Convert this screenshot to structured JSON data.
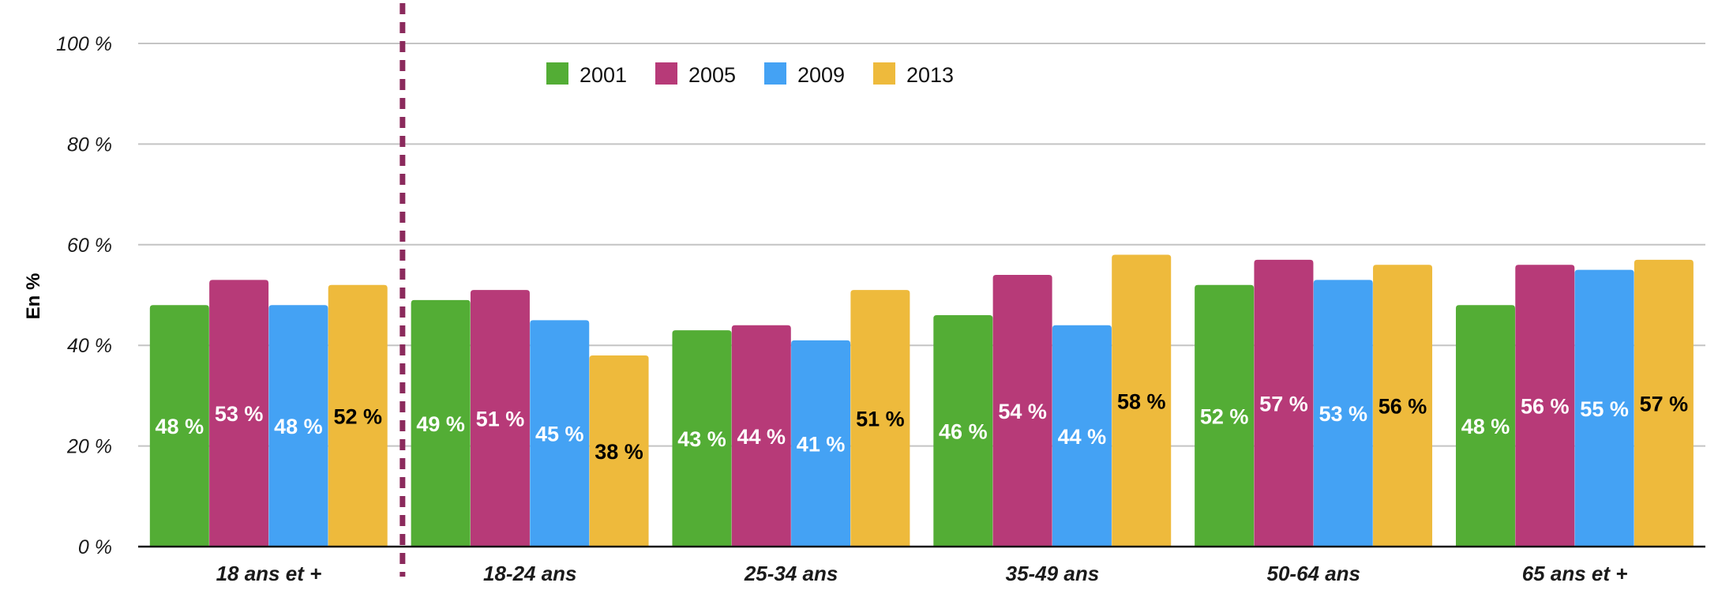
{
  "chart_data": {
    "type": "bar",
    "title": "",
    "xlabel": "",
    "ylabel": "En %",
    "ylim": [
      0,
      100
    ],
    "yticks": [
      0,
      20,
      40,
      60,
      80,
      100
    ],
    "ytick_labels": [
      "0 %",
      "20 %",
      "40 %",
      "60 %",
      "80 %",
      "100 %"
    ],
    "grid": true,
    "legend_position": "top-center",
    "categories": [
      "18 ans et +",
      "18-24 ans",
      "25-34 ans",
      "35-49 ans",
      "50-64 ans",
      "65 ans et +"
    ],
    "separator_after_category": "18 ans et +",
    "separator_color": "#8b2a5c",
    "value_suffix": " %",
    "series": [
      {
        "name": "2001",
        "color": "#53ad35",
        "label_color": "#ffffff",
        "values": [
          48,
          49,
          43,
          46,
          52,
          48
        ]
      },
      {
        "name": "2005",
        "color": "#b73a78",
        "label_color": "#ffffff",
        "values": [
          53,
          51,
          44,
          54,
          57,
          56
        ]
      },
      {
        "name": "2009",
        "color": "#44a2f4",
        "label_color": "#ffffff",
        "values": [
          48,
          45,
          41,
          44,
          53,
          55
        ]
      },
      {
        "name": "2013",
        "color": "#eeba3c",
        "label_color": "#000000",
        "values": [
          52,
          38,
          51,
          58,
          56,
          57
        ]
      }
    ]
  }
}
